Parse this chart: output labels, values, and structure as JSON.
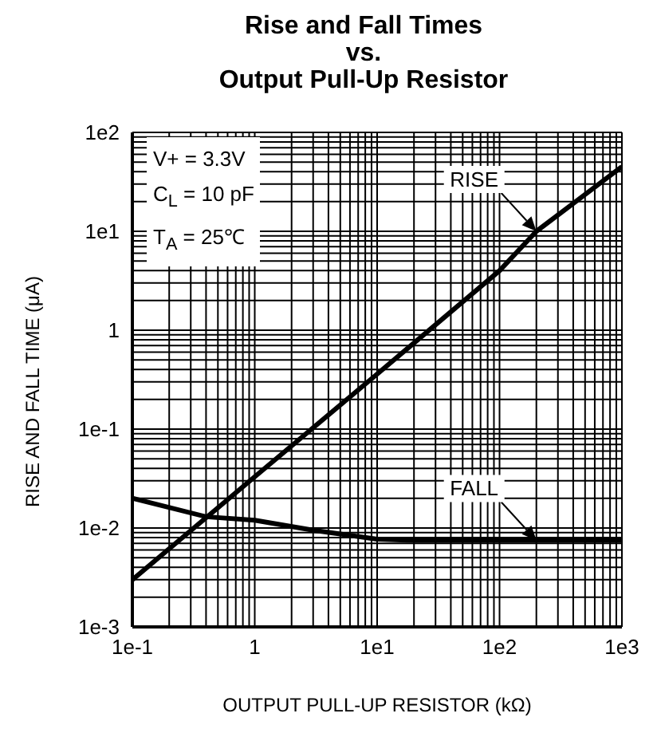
{
  "chart_data": {
    "type": "line",
    "title": "Rise and Fall Times\nvs.\nOutput Pull-Up Resistor",
    "xlabel": "OUTPUT PULL-UP RESISTOR (kΩ)",
    "ylabel": "RISE AND FALL TIME (μA)",
    "annotations": [
      "V+ = 3.3V",
      "C$_{L}$ = 10 pF",
      "T$_{A}$ = 25℃"
    ],
    "log": "xy",
    "grid": true,
    "marker": "none",
    "line_style": "solid",
    "xlim": [
      0.1,
      1000
    ],
    "xticks": [
      {
        "value": 0.1,
        "label": "1e-1"
      },
      {
        "value": 1,
        "label": "1"
      },
      {
        "value": 10,
        "label": "1e1"
      },
      {
        "value": 100,
        "label": "1e2"
      },
      {
        "value": 1000,
        "label": "1e3"
      }
    ],
    "ylim": [
      0.001,
      100
    ],
    "yticks": [
      {
        "value": 0.001,
        "label": "1e-3"
      },
      {
        "value": 0.01,
        "label": "1e-2"
      },
      {
        "value": 0.1,
        "label": "1e-1"
      },
      {
        "value": 1,
        "label": "1"
      },
      {
        "value": 10,
        "label": "1e1"
      },
      {
        "value": 100,
        "label": "1e2"
      }
    ],
    "series": [
      {
        "name": "RISE",
        "color": "#000000",
        "x": [
          0.1,
          1,
          10,
          100,
          200,
          1000
        ],
        "values": [
          0.003,
          0.033,
          0.36,
          4,
          10,
          45
        ]
      },
      {
        "name": "FALL",
        "color": "#000000",
        "x": [
          0.1,
          0.4,
          1,
          3,
          10,
          20,
          200,
          1000
        ],
        "values": [
          0.02,
          0.013,
          0.012,
          0.0095,
          0.0077,
          0.0075,
          0.0075,
          0.0075
        ]
      }
    ]
  }
}
